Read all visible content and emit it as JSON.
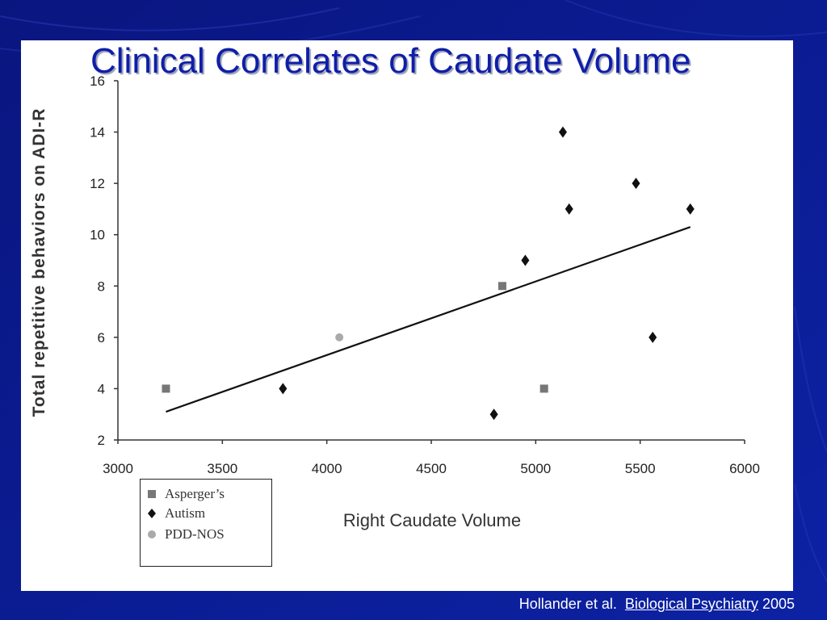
{
  "slide": {
    "title": "Clinical Correlates of Caudate Volume",
    "background_color": "#0a1a8c",
    "title_color": "#0f1ea8"
  },
  "citation": {
    "authors": "Hollander et al.",
    "journal": "Biological Psychiatry",
    "year": "2005"
  },
  "legend": {
    "placement": "bottom-left",
    "items": [
      {
        "label": "Asperger’s",
        "marker": "square",
        "color": "#777777"
      },
      {
        "label": "Autism",
        "marker": "diamond",
        "color": "#111111"
      },
      {
        "label": "PDD-NOS",
        "marker": "circle",
        "color": "#aaaaaa"
      }
    ]
  },
  "chart_data": {
    "type": "scatter",
    "title": "",
    "xlabel": "Right Caudate Volume",
    "ylabel": "Total repetitive behaviors on ADI-R",
    "xlim": [
      3000,
      6000
    ],
    "ylim": [
      2,
      16
    ],
    "xticks": [
      3000,
      3500,
      4000,
      4500,
      5000,
      5500,
      6000
    ],
    "yticks": [
      2,
      4,
      6,
      8,
      10,
      12,
      14,
      16
    ],
    "grid": false,
    "series": [
      {
        "name": "Asperger’s",
        "marker": "square",
        "color": "#777777",
        "points": [
          [
            3230,
            4
          ],
          [
            4840,
            8
          ],
          [
            5040,
            4
          ]
        ]
      },
      {
        "name": "Autism",
        "marker": "diamond",
        "color": "#111111",
        "points": [
          [
            3790,
            4
          ],
          [
            4800,
            3
          ],
          [
            4950,
            9
          ],
          [
            5130,
            14
          ],
          [
            5160,
            11
          ],
          [
            5480,
            12
          ],
          [
            5560,
            6
          ],
          [
            5740,
            11
          ]
        ]
      },
      {
        "name": "PDD-NOS",
        "marker": "circle",
        "color": "#aaaaaa",
        "points": [
          [
            4060,
            6
          ]
        ]
      }
    ],
    "trendline": {
      "x": [
        3230,
        5740
      ],
      "y": [
        3.1,
        10.3
      ],
      "color": "#111111"
    }
  }
}
